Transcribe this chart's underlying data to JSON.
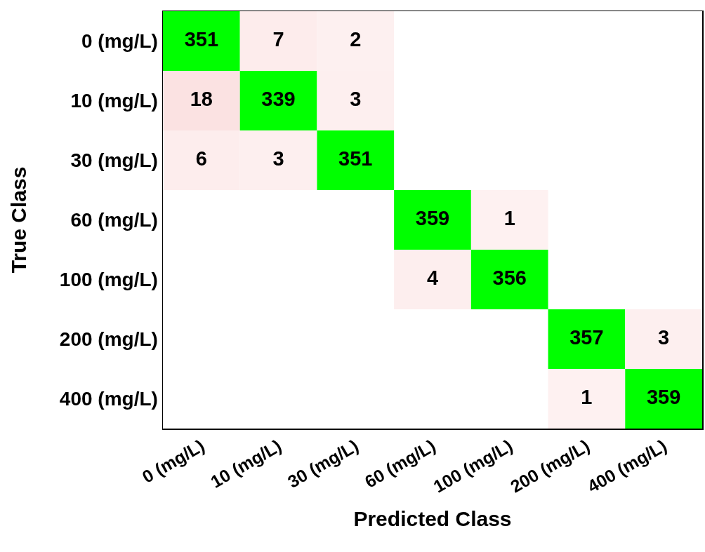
{
  "chart_data": {
    "type": "heatmap",
    "xlabel": "Predicted Class",
    "ylabel": "True Class",
    "categories": [
      "0 (mg/L)",
      "10 (mg/L)",
      "30 (mg/L)",
      "60 (mg/L)",
      "100 (mg/L)",
      "200 (mg/L)",
      "400 (mg/L)"
    ],
    "y_categories": [
      "0 (mg/L)",
      "10 (mg/L)",
      "30 (mg/L)",
      "60 (mg/L)",
      "100 (mg/L)",
      "200 (mg/L)",
      "400 (mg/L)"
    ],
    "cells": [
      [
        351,
        7,
        2,
        null,
        null,
        null,
        null
      ],
      [
        18,
        339,
        3,
        null,
        null,
        null,
        null
      ],
      [
        6,
        3,
        351,
        null,
        null,
        null,
        null
      ],
      [
        null,
        null,
        null,
        359,
        1,
        null,
        null
      ],
      [
        null,
        null,
        null,
        4,
        356,
        null,
        null
      ],
      [
        null,
        null,
        null,
        null,
        null,
        357,
        3
      ],
      [
        null,
        null,
        null,
        null,
        null,
        1,
        359
      ]
    ],
    "colors": [
      [
        "#00ff00",
        "#fdecec",
        "#fdf0f0",
        null,
        null,
        null,
        null
      ],
      [
        "#fbe2e2",
        "#00ff00",
        "#fdefef",
        null,
        null,
        null,
        null
      ],
      [
        "#fdeded",
        "#fdefef",
        "#00ff00",
        null,
        null,
        null,
        null
      ],
      [
        null,
        null,
        null,
        "#00ff00",
        "#fef1f1",
        null,
        null
      ],
      [
        null,
        null,
        null,
        "#fdeeee",
        "#00ff00",
        null,
        null
      ],
      [
        null,
        null,
        null,
        null,
        null,
        "#00ff00",
        "#fdefef"
      ],
      [
        null,
        null,
        null,
        null,
        null,
        "#fef1f1",
        "#00ff00"
      ]
    ],
    "data_labels": true
  }
}
